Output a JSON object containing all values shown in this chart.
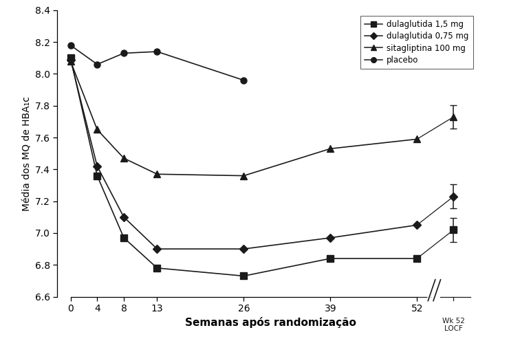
{
  "xlabel": "Semanas após randomização",
  "ylabel": "Média dos MQ de HBA₁c",
  "ylim": [
    6.6,
    8.4
  ],
  "yticks": [
    6.6,
    6.8,
    7.0,
    7.2,
    7.4,
    7.6,
    7.8,
    8.0,
    8.2,
    8.4
  ],
  "xticks": [
    0,
    4,
    8,
    13,
    26,
    39,
    52
  ],
  "weeks": [
    0,
    4,
    8,
    13,
    26,
    39,
    52
  ],
  "dulaglutida_15": [
    8.1,
    7.36,
    6.97,
    6.78,
    6.73,
    6.84,
    6.84
  ],
  "dulaglutida_075": [
    8.09,
    7.42,
    7.1,
    6.9,
    6.9,
    6.97,
    7.05
  ],
  "sitagliptina": [
    8.08,
    7.65,
    7.47,
    7.37,
    7.36,
    7.53,
    7.59
  ],
  "placebo": [
    8.18,
    8.06,
    8.13,
    8.14,
    7.96,
    null,
    null
  ],
  "wk52_locf_dula15": 7.02,
  "wk52_locf_dula15_err": 0.075,
  "wk52_locf_dula075": 7.23,
  "wk52_locf_dula075_err": 0.075,
  "wk52_locf_sita": 7.73,
  "wk52_locf_sita_err": 0.075,
  "legend_labels": [
    "dulaglutida 1,5 mg",
    "dulaglutida 0,75 mg",
    "sitagliptina 100 mg",
    "placebo"
  ],
  "color": "#1a1a1a",
  "background": "#ffffff"
}
